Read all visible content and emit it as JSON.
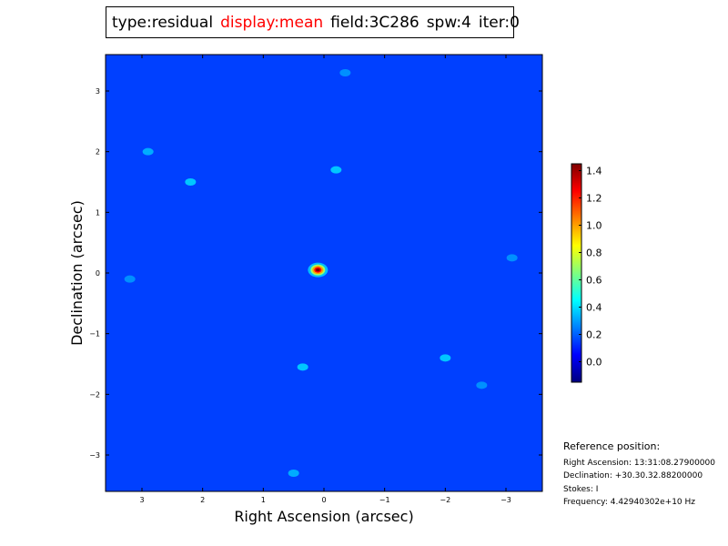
{
  "header": {
    "type": "type:residual",
    "display": "display:mean",
    "field": "field:3C286",
    "spw": "spw:4",
    "iter": "iter:0",
    "display_color": "#ff0000"
  },
  "chart_data": {
    "type": "heatmap",
    "title": "",
    "xlabel": "Right Ascension (arcsec)",
    "ylabel": "Declination (arcsec)",
    "xlim": [
      3.6,
      -3.6
    ],
    "ylim": [
      -3.6,
      3.6
    ],
    "xticks": [
      "3",
      "2",
      "1",
      "0",
      "−1",
      "−2",
      "−3"
    ],
    "xtick_values": [
      3,
      2,
      1,
      0,
      -1,
      -2,
      -3
    ],
    "yticks": [
      "3",
      "2",
      "1",
      "0",
      "−1",
      "−2",
      "−3"
    ],
    "ytick_values": [
      3,
      2,
      1,
      0,
      -1,
      -2,
      -3
    ],
    "colormap": "jet",
    "background_level": 0.15,
    "peak": {
      "ra": 0.1,
      "dec": 0.05,
      "value": 1.45
    },
    "features": [
      {
        "ra": 2.2,
        "dec": 1.5,
        "value": 0.4
      },
      {
        "ra": 2.9,
        "dec": 2.0,
        "value": 0.35
      },
      {
        "ra": -0.2,
        "dec": 1.7,
        "value": 0.4
      },
      {
        "ra": 0.35,
        "dec": -1.55,
        "value": 0.4
      },
      {
        "ra": -2.0,
        "dec": -1.4,
        "value": 0.4
      },
      {
        "ra": -2.6,
        "dec": -1.85,
        "value": 0.3
      },
      {
        "ra": 0.5,
        "dec": -3.3,
        "value": 0.35
      },
      {
        "ra": -0.35,
        "dec": 3.3,
        "value": 0.3
      },
      {
        "ra": -3.1,
        "dec": 0.25,
        "value": 0.3
      },
      {
        "ra": 3.2,
        "dec": -0.1,
        "value": 0.3
      }
    ],
    "colorbar": {
      "ticks": [
        "0.0",
        "0.2",
        "0.4",
        "0.6",
        "0.8",
        "1.0",
        "1.2",
        "1.4"
      ],
      "tick_values": [
        0,
        0.2,
        0.4,
        0.6,
        0.8,
        1.0,
        1.2,
        1.4
      ],
      "range": [
        -0.15,
        1.45
      ]
    }
  },
  "reference": {
    "title": "Reference position:",
    "ra": "Right Ascension: 13:31:08.27900000",
    "dec": "Declination: +30.30.32.88200000",
    "stokes": "Stokes: I",
    "frequency": "Frequency: 4.42940302e+10 Hz"
  }
}
